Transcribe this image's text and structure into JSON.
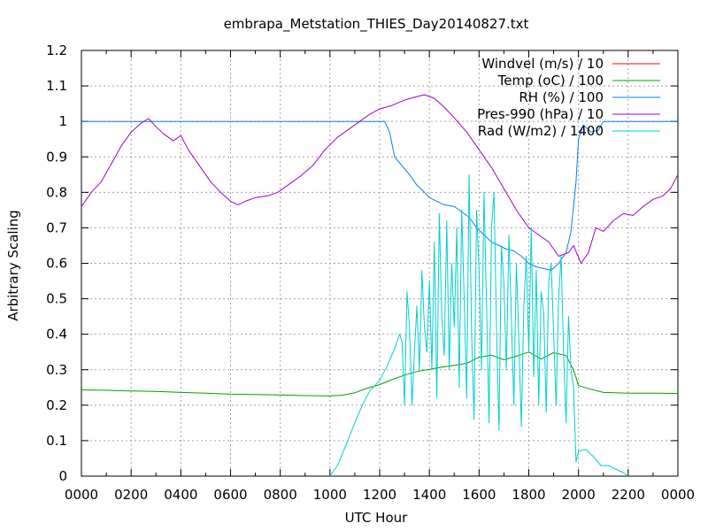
{
  "chart_data": {
    "type": "line",
    "title": "embrapa_Metstation_THIES_Day20140827.txt",
    "xlabel": "UTC Hour",
    "ylabel": "Arbitrary Scaling",
    "xlim": [
      0,
      24
    ],
    "ylim": [
      0,
      1.2
    ],
    "x_ticks": [
      "0000",
      "0200",
      "0400",
      "0600",
      "0800",
      "1000",
      "1200",
      "1400",
      "1600",
      "1800",
      "2000",
      "2200",
      "0000"
    ],
    "y_ticks": [
      "0",
      "0.1",
      "0.2",
      "0.3",
      "0.4",
      "0.5",
      "0.6",
      "0.7",
      "0.8",
      "0.9",
      "1",
      "1.1",
      "1.2"
    ],
    "grid": true,
    "legend_position": "top-right",
    "series": [
      {
        "name": "Windvel (m/s) / 10",
        "color": "#ff0000",
        "points": []
      },
      {
        "name": "Temp (oC) / 100",
        "color": "#00a000",
        "points": [
          [
            0,
            0.243
          ],
          [
            1,
            0.242
          ],
          [
            2,
            0.24
          ],
          [
            3,
            0.239
          ],
          [
            4,
            0.236
          ],
          [
            5,
            0.234
          ],
          [
            6,
            0.231
          ],
          [
            7,
            0.23
          ],
          [
            8,
            0.229
          ],
          [
            9,
            0.227
          ],
          [
            10,
            0.226
          ],
          [
            10.5,
            0.228
          ],
          [
            11,
            0.235
          ],
          [
            11.5,
            0.248
          ],
          [
            12,
            0.258
          ],
          [
            12.5,
            0.272
          ],
          [
            13,
            0.285
          ],
          [
            13.5,
            0.295
          ],
          [
            14,
            0.301
          ],
          [
            14.5,
            0.307
          ],
          [
            15,
            0.312
          ],
          [
            15.5,
            0.318
          ],
          [
            16,
            0.335
          ],
          [
            16.5,
            0.341
          ],
          [
            17,
            0.328
          ],
          [
            17.5,
            0.338
          ],
          [
            18,
            0.35
          ],
          [
            18.5,
            0.33
          ],
          [
            19,
            0.348
          ],
          [
            19.5,
            0.34
          ],
          [
            19.8,
            0.3
          ],
          [
            20,
            0.255
          ],
          [
            20.5,
            0.245
          ],
          [
            21,
            0.236
          ],
          [
            22,
            0.234
          ],
          [
            23,
            0.234
          ],
          [
            24,
            0.233
          ]
        ]
      },
      {
        "name": "RH (%) / 100",
        "color": "#0080ff",
        "points": [
          [
            0,
            1
          ],
          [
            12.2,
            1
          ],
          [
            12.4,
            0.97
          ],
          [
            12.6,
            0.9
          ],
          [
            12.9,
            0.875
          ],
          [
            13.2,
            0.85
          ],
          [
            13.5,
            0.82
          ],
          [
            13.8,
            0.8
          ],
          [
            14.0,
            0.785
          ],
          [
            14.3,
            0.775
          ],
          [
            14.6,
            0.765
          ],
          [
            15.0,
            0.76
          ],
          [
            15.3,
            0.745
          ],
          [
            15.6,
            0.73
          ],
          [
            15.9,
            0.7
          ],
          [
            16.2,
            0.68
          ],
          [
            16.5,
            0.66
          ],
          [
            16.8,
            0.65
          ],
          [
            17.1,
            0.64
          ],
          [
            17.4,
            0.635
          ],
          [
            17.7,
            0.62
          ],
          [
            18.0,
            0.6
          ],
          [
            18.3,
            0.59
          ],
          [
            18.6,
            0.585
          ],
          [
            18.9,
            0.58
          ],
          [
            19.2,
            0.6
          ],
          [
            19.5,
            0.63
          ],
          [
            19.7,
            0.69
          ],
          [
            19.9,
            0.83
          ],
          [
            20.0,
            0.95
          ],
          [
            20.2,
            0.99
          ],
          [
            20.5,
            0.97
          ],
          [
            20.8,
            0.975
          ],
          [
            21.0,
            1.0
          ],
          [
            21.5,
            1.0
          ],
          [
            24,
            1.0
          ]
        ]
      },
      {
        "name": "Pres-990 (hPa) / 10",
        "color": "#a000d0",
        "points": [
          [
            0,
            0.76
          ],
          [
            0.4,
            0.8
          ],
          [
            0.8,
            0.83
          ],
          [
            1.2,
            0.88
          ],
          [
            1.6,
            0.93
          ],
          [
            2.0,
            0.97
          ],
          [
            2.4,
            0.995
          ],
          [
            2.7,
            1.008
          ],
          [
            3.0,
            0.985
          ],
          [
            3.3,
            0.965
          ],
          [
            3.7,
            0.945
          ],
          [
            4.0,
            0.96
          ],
          [
            4.3,
            0.92
          ],
          [
            4.8,
            0.87
          ],
          [
            5.2,
            0.83
          ],
          [
            5.6,
            0.8
          ],
          [
            6.0,
            0.775
          ],
          [
            6.3,
            0.765
          ],
          [
            6.6,
            0.775
          ],
          [
            7.0,
            0.785
          ],
          [
            7.5,
            0.79
          ],
          [
            7.9,
            0.8
          ],
          [
            8.3,
            0.82
          ],
          [
            8.8,
            0.845
          ],
          [
            9.3,
            0.875
          ],
          [
            9.8,
            0.92
          ],
          [
            10.3,
            0.955
          ],
          [
            10.8,
            0.98
          ],
          [
            11.2,
            1.0
          ],
          [
            11.6,
            1.02
          ],
          [
            12.0,
            1.035
          ],
          [
            12.5,
            1.045
          ],
          [
            13.0,
            1.06
          ],
          [
            13.5,
            1.07
          ],
          [
            13.8,
            1.075
          ],
          [
            14.2,
            1.065
          ],
          [
            14.6,
            1.04
          ],
          [
            15.0,
            1.01
          ],
          [
            15.5,
            0.97
          ],
          [
            16.0,
            0.92
          ],
          [
            16.5,
            0.87
          ],
          [
            17.0,
            0.81
          ],
          [
            17.5,
            0.75
          ],
          [
            18.0,
            0.7
          ],
          [
            18.4,
            0.68
          ],
          [
            18.8,
            0.66
          ],
          [
            19.2,
            0.62
          ],
          [
            19.6,
            0.63
          ],
          [
            19.8,
            0.65
          ],
          [
            20.1,
            0.6
          ],
          [
            20.4,
            0.63
          ],
          [
            20.7,
            0.7
          ],
          [
            21.0,
            0.69
          ],
          [
            21.4,
            0.72
          ],
          [
            21.8,
            0.74
          ],
          [
            22.2,
            0.735
          ],
          [
            22.6,
            0.76
          ],
          [
            23.0,
            0.78
          ],
          [
            23.4,
            0.79
          ],
          [
            23.7,
            0.81
          ],
          [
            24,
            0.85
          ]
        ]
      },
      {
        "name": "Rad (W/m2) / 1400",
        "color": "#00d0d0",
        "points": [
          [
            10.0,
            0.0
          ],
          [
            10.3,
            0.03
          ],
          [
            10.6,
            0.08
          ],
          [
            11.0,
            0.15
          ],
          [
            11.3,
            0.2
          ],
          [
            11.6,
            0.24
          ],
          [
            12.0,
            0.27
          ],
          [
            12.3,
            0.31
          ],
          [
            12.6,
            0.36
          ],
          [
            12.8,
            0.4
          ],
          [
            12.9,
            0.38
          ],
          [
            13.0,
            0.2
          ],
          [
            13.1,
            0.52
          ],
          [
            13.2,
            0.42
          ],
          [
            13.3,
            0.2
          ],
          [
            13.4,
            0.35
          ],
          [
            13.5,
            0.48
          ],
          [
            13.6,
            0.3
          ],
          [
            13.7,
            0.58
          ],
          [
            13.8,
            0.42
          ],
          [
            13.9,
            0.35
          ],
          [
            14.0,
            0.55
          ],
          [
            14.1,
            0.3
          ],
          [
            14.2,
            0.66
          ],
          [
            14.3,
            0.22
          ],
          [
            14.4,
            0.74
          ],
          [
            14.5,
            0.45
          ],
          [
            14.6,
            0.34
          ],
          [
            14.7,
            0.72
          ],
          [
            14.8,
            0.3
          ],
          [
            14.9,
            0.6
          ],
          [
            15.0,
            0.42
          ],
          [
            15.1,
            0.7
          ],
          [
            15.2,
            0.25
          ],
          [
            15.3,
            0.75
          ],
          [
            15.4,
            0.5
          ],
          [
            15.5,
            0.22
          ],
          [
            15.6,
            0.85
          ],
          [
            15.7,
            0.4
          ],
          [
            15.8,
            0.16
          ],
          [
            15.9,
            0.75
          ],
          [
            16.0,
            0.58
          ],
          [
            16.1,
            0.3
          ],
          [
            16.2,
            0.8
          ],
          [
            16.3,
            0.48
          ],
          [
            16.4,
            0.15
          ],
          [
            16.5,
            0.7
          ],
          [
            16.6,
            0.8
          ],
          [
            16.7,
            0.42
          ],
          [
            16.8,
            0.13
          ],
          [
            16.9,
            0.65
          ],
          [
            17.0,
            0.54
          ],
          [
            17.1,
            0.3
          ],
          [
            17.2,
            0.68
          ],
          [
            17.3,
            0.45
          ],
          [
            17.4,
            0.2
          ],
          [
            17.5,
            0.6
          ],
          [
            17.6,
            0.38
          ],
          [
            17.7,
            0.14
          ],
          [
            17.8,
            0.48
          ],
          [
            17.9,
            0.62
          ],
          [
            18.0,
            0.35
          ],
          [
            18.1,
            0.7
          ],
          [
            18.2,
            0.28
          ],
          [
            18.3,
            0.58
          ],
          [
            18.4,
            0.2
          ],
          [
            18.5,
            0.52
          ],
          [
            18.6,
            0.46
          ],
          [
            18.7,
            0.18
          ],
          [
            18.8,
            0.55
          ],
          [
            18.9,
            0.6
          ],
          [
            19.0,
            0.4
          ],
          [
            19.1,
            0.2
          ],
          [
            19.2,
            0.5
          ],
          [
            19.3,
            0.62
          ],
          [
            19.4,
            0.35
          ],
          [
            19.5,
            0.15
          ],
          [
            19.6,
            0.45
          ],
          [
            19.7,
            0.3
          ],
          [
            19.8,
            0.25
          ],
          [
            19.9,
            0.04
          ],
          [
            20.0,
            0.07
          ],
          [
            20.3,
            0.075
          ],
          [
            20.6,
            0.055
          ],
          [
            20.9,
            0.03
          ],
          [
            21.2,
            0.03
          ],
          [
            21.5,
            0.02
          ],
          [
            21.8,
            0.01
          ],
          [
            22.0,
            0.0
          ]
        ]
      }
    ]
  }
}
